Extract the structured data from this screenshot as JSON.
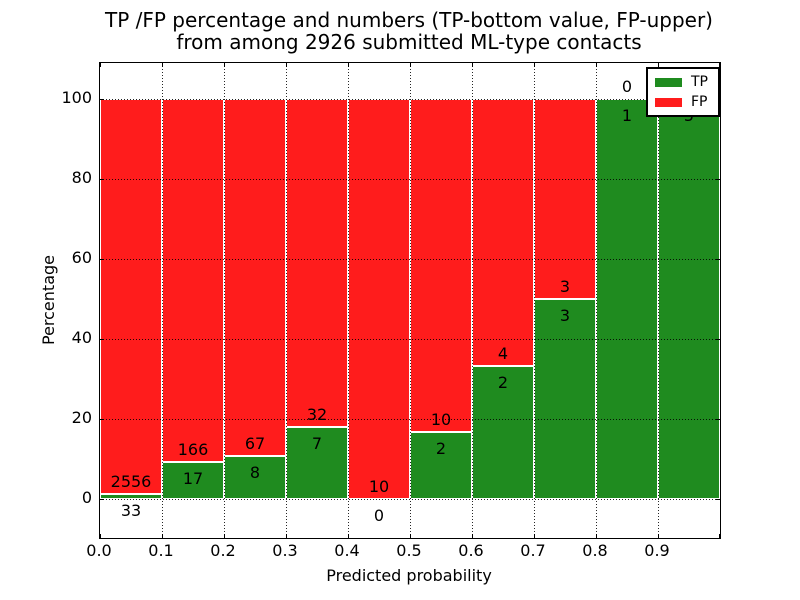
{
  "chart_data": {
    "type": "bar",
    "variant": "stacked-percentage-histogram",
    "title": "TP /FP percentage and numbers (TP-bottom value, FP-upper) from among 2926 submitted ML-type contacts",
    "title_lines": [
      "TP /FP percentage and numbers (TP-bottom value, FP-upper)",
      "from among 2926 submitted ML-type contacts"
    ],
    "xlabel": "Predicted probability",
    "ylabel": "Percentage",
    "total_submitted": 2926,
    "grid": true,
    "xlim": [
      0.0,
      1.0
    ],
    "ylim": [
      -9.75,
      109
    ],
    "x_tick_labels": [
      "0.0",
      "0.1",
      "0.2",
      "0.3",
      "0.4",
      "0.5",
      "0.6",
      "0.7",
      "0.8",
      "0.9"
    ],
    "y_tick_values": [
      0,
      20,
      40,
      60,
      80,
      100
    ],
    "y_tick_labels": [
      "0",
      "20",
      "40",
      "60",
      "80",
      "100"
    ],
    "colors": {
      "tp": "#1f8b1f",
      "fp": "#ff1c1c",
      "bar_edge": "#ffffff",
      "grid": "#000000"
    },
    "legend": {
      "position": "upper right",
      "entries": [
        {
          "label": "TP",
          "color": "#1f8b1f"
        },
        {
          "label": "FP",
          "color": "#ff1c1c"
        }
      ]
    },
    "bins": [
      {
        "range": "0.0-0.1",
        "tp": 33,
        "fp": 2556
      },
      {
        "range": "0.1-0.2",
        "tp": 17,
        "fp": 166
      },
      {
        "range": "0.2-0.3",
        "tp": 8,
        "fp": 67
      },
      {
        "range": "0.3-0.4",
        "tp": 7,
        "fp": 32
      },
      {
        "range": "0.4-0.5",
        "tp": 0,
        "fp": 10
      },
      {
        "range": "0.5-0.6",
        "tp": 2,
        "fp": 10
      },
      {
        "range": "0.6-0.7",
        "tp": 2,
        "fp": 4
      },
      {
        "range": "0.7-0.8",
        "tp": 3,
        "fp": 3
      },
      {
        "range": "0.8-0.9",
        "tp": 1,
        "fp": 0
      },
      {
        "range": "0.9-1.0",
        "tp": 5,
        "fp": 0
      }
    ]
  }
}
